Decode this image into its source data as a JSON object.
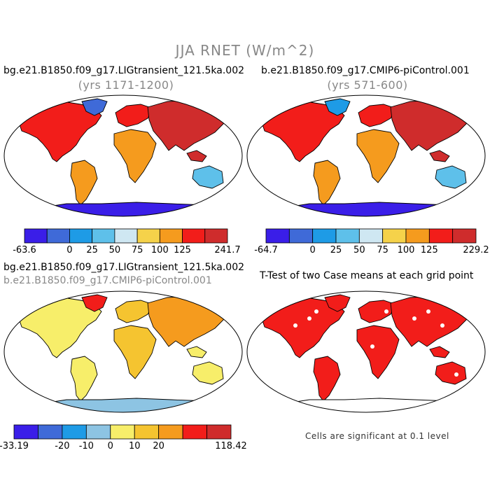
{
  "figure": {
    "title": "JJA RNET (W/m^2)",
    "footnote": "Cells are significant at 0.1 level"
  },
  "panels": {
    "tl": {
      "title": "bg.e21.B1850.f09_g17.LIGtransient_121.5ka.002",
      "subtitle": "(yrs 1171-1200)",
      "colorbar": {
        "colors": [
          "#3a1ee8",
          "#3f6ad8",
          "#1e9be6",
          "#5ec0ea",
          "#cfe7f2",
          "#f5d24a",
          "#f59b1e",
          "#f21d1a",
          "#cf2c2c"
        ],
        "labels": [
          "-63.6",
          "0",
          "25",
          "50",
          "75",
          "100",
          "125",
          "241.7"
        ]
      }
    },
    "tr": {
      "title": "b.e21.B1850.f09_g17.CMIP6-piControl.001",
      "subtitle": "(yrs 571-600)",
      "colorbar": {
        "colors": [
          "#3a1ee8",
          "#3f6ad8",
          "#1e9be6",
          "#5ec0ea",
          "#cfe7f2",
          "#f5d24a",
          "#f59b1e",
          "#f21d1a",
          "#cf2c2c"
        ],
        "labels": [
          "-64.7",
          "0",
          "25",
          "50",
          "75",
          "100",
          "125",
          "229.2"
        ]
      }
    },
    "bl": {
      "title": "bg.e21.B1850.f09_g17.LIGtransient_121.5ka.002",
      "title2": "b.e21.B1850.f09_g17.CMIP6-piControl.001",
      "colorbar": {
        "colors": [
          "#3a1ee8",
          "#3f6ad8",
          "#1e9be6",
          "#8dc4e3",
          "#f7ee6a",
          "#f5c430",
          "#f59b1e",
          "#f21d1a",
          "#cf2c2c"
        ],
        "labels": [
          "-33.19",
          "-20",
          "-10",
          "0",
          "10",
          "20",
          "118.42"
        ]
      }
    },
    "br": {
      "title": "T-Test of two Case means at each grid point"
    }
  }
}
